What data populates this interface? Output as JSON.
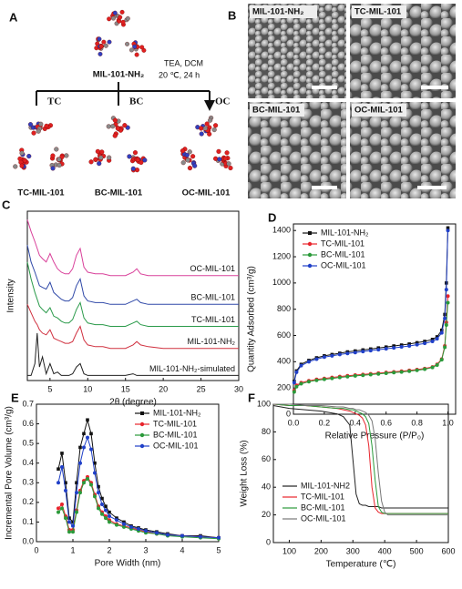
{
  "scheme": {
    "panel": "A",
    "reactant": "MIL-101-NH₂",
    "conditions": [
      "TEA, DCM",
      "20 ℃, 24 h"
    ],
    "reagents": [
      "TC",
      "BC",
      "OC"
    ],
    "products": [
      "TC-MIL-101",
      "BC-MIL-101",
      "OC-MIL-101"
    ]
  },
  "sem": {
    "panel": "B",
    "images": [
      "MIL-101-NH₂",
      "TC-MIL-101",
      "BC-MIL-101",
      "OC-MIL-101"
    ]
  },
  "chart_data": [
    {
      "panel": "C",
      "type": "line",
      "xlabel": "2θ (degree)",
      "ylabel": "Intensity",
      "xlim": [
        2,
        30
      ],
      "xticks": [
        5,
        10,
        15,
        20,
        25,
        30
      ],
      "ylim": [
        0,
        100
      ],
      "x": [
        2,
        2.5,
        3,
        3.3,
        3.6,
        4,
        4.5,
        5,
        5.5,
        6,
        6.5,
        7,
        7.5,
        8,
        8.5,
        9,
        9.5,
        10,
        11,
        12,
        13,
        14,
        15,
        16,
        16.5,
        17,
        18,
        20,
        22,
        25,
        28,
        30
      ],
      "series": [
        {
          "name": "OC-MIL-101",
          "color": "#d9409a",
          "values": [
            95,
            88,
            82,
            78,
            74,
            72,
            70,
            75,
            70,
            66,
            64,
            63,
            63,
            66,
            74,
            78,
            67,
            64,
            63,
            63,
            62,
            62,
            62,
            64,
            66,
            63,
            62,
            62,
            62,
            62,
            62,
            62
          ]
        },
        {
          "name": "BC-MIL-101",
          "color": "#3049a8",
          "values": [
            80,
            70,
            64,
            60,
            56,
            55,
            54,
            58,
            52,
            50,
            48,
            47,
            47,
            49,
            56,
            60,
            50,
            47,
            46,
            46,
            45,
            45,
            45,
            47,
            48,
            46,
            45,
            45,
            45,
            45,
            45,
            45
          ]
        },
        {
          "name": "TC-MIL-101",
          "color": "#2a9a4a",
          "values": [
            70,
            60,
            52,
            48,
            44,
            42,
            40,
            43,
            38,
            37,
            35,
            34,
            34,
            36,
            42,
            46,
            37,
            34,
            33,
            33,
            32,
            32,
            32,
            34,
            35,
            33,
            32,
            32,
            32,
            32,
            32,
            32
          ]
        },
        {
          "name": "MIL-101-NH₂",
          "color": "#d0303f",
          "values": [
            45,
            40,
            35,
            33,
            30,
            28,
            27,
            30,
            25,
            24,
            23,
            22,
            22,
            23,
            28,
            32,
            24,
            21,
            20,
            20,
            19,
            19,
            19,
            21,
            23,
            21,
            20,
            19,
            19,
            19,
            19,
            19
          ]
        },
        {
          "name": "MIL-101-NH₂-simulated",
          "color": "#222222",
          "values": [
            3,
            3,
            10,
            28,
            8,
            14,
            4,
            10,
            4,
            5,
            3,
            3,
            3,
            4,
            8,
            10,
            4,
            3,
            3,
            3,
            3,
            3,
            3,
            4,
            3,
            3,
            3,
            3,
            3,
            3,
            3,
            3
          ]
        }
      ]
    },
    {
      "panel": "D",
      "type": "line",
      "xlabel": "Relative Pressure (P/P₀)",
      "ylabel": "Quantity Adsorbed (cm³/g)",
      "xlim": [
        0,
        1.05
      ],
      "ylim": [
        0,
        1450
      ],
      "xticks": [
        {
          "value": 0,
          "label": "0.0"
        },
        0.2,
        0.4,
        0.6,
        0.8,
        {
          "value": 1,
          "label": "1.0"
        }
      ],
      "yticks": [
        0,
        200,
        400,
        600,
        800,
        1000,
        1200,
        1400
      ],
      "legend": "upper left",
      "x": [
        0.005,
        0.02,
        0.05,
        0.1,
        0.15,
        0.2,
        0.25,
        0.3,
        0.35,
        0.4,
        0.45,
        0.5,
        0.55,
        0.6,
        0.65,
        0.7,
        0.75,
        0.8,
        0.85,
        0.9,
        0.93,
        0.96,
        0.98,
        0.99,
        1.0
      ],
      "series": [
        {
          "name": "MIL-101-NH₂",
          "color": "#111111",
          "marker": "square",
          "values": [
            250,
            330,
            380,
            410,
            430,
            445,
            455,
            465,
            475,
            482,
            490,
            497,
            505,
            512,
            520,
            527,
            535,
            545,
            555,
            570,
            590,
            640,
            760,
            1000,
            1420
          ]
        },
        {
          "name": "TC-MIL-101",
          "color": "#e8242c",
          "marker": "circle",
          "values": [
            180,
            220,
            240,
            255,
            265,
            272,
            280,
            287,
            293,
            298,
            303,
            308,
            313,
            318,
            323,
            328,
            334,
            340,
            348,
            360,
            380,
            420,
            520,
            700,
            900
          ]
        },
        {
          "name": "BC-MIL-101",
          "color": "#2a9a3a",
          "marker": "circle",
          "values": [
            170,
            210,
            232,
            248,
            258,
            266,
            273,
            280,
            286,
            292,
            297,
            302,
            307,
            312,
            317,
            322,
            328,
            335,
            343,
            356,
            375,
            415,
            510,
            680,
            850
          ]
        },
        {
          "name": "OC-MIL-101",
          "color": "#2040c8",
          "marker": "circle",
          "values": [
            240,
            320,
            370,
            400,
            420,
            435,
            445,
            455,
            463,
            470,
            478,
            485,
            492,
            499,
            506,
            513,
            520,
            530,
            540,
            555,
            575,
            620,
            730,
            950,
            1400
          ]
        }
      ]
    },
    {
      "panel": "E",
      "type": "line",
      "xlabel": "Pore Width (nm)",
      "ylabel": "Incremental Pore Volume (cm³/g)",
      "xlim": [
        0,
        5
      ],
      "ylim": [
        0,
        0.7
      ],
      "xticks": [
        0,
        1,
        2,
        3,
        4,
        5
      ],
      "yticks": [
        {
          "value": 0,
          "label": "0.0"
        },
        0.1,
        0.2,
        0.3,
        0.4,
        0.5,
        0.6,
        0.7
      ],
      "legend": "upper right",
      "x": [
        0.6,
        0.7,
        0.8,
        0.9,
        1.0,
        1.1,
        1.2,
        1.3,
        1.4,
        1.5,
        1.6,
        1.7,
        1.8,
        1.9,
        2.0,
        2.2,
        2.4,
        2.6,
        2.8,
        3.0,
        3.3,
        3.6,
        4.0,
        4.5,
        5.0
      ],
      "series": [
        {
          "name": "MIL-101-NH₂",
          "color": "#111111",
          "marker": "square",
          "values": [
            0.37,
            0.45,
            0.3,
            0.12,
            0.1,
            0.3,
            0.48,
            0.55,
            0.62,
            0.55,
            0.4,
            0.28,
            0.22,
            0.18,
            0.15,
            0.12,
            0.1,
            0.08,
            0.07,
            0.06,
            0.05,
            0.04,
            0.03,
            0.03,
            0.02
          ]
        },
        {
          "name": "TC-MIL-101",
          "color": "#e8242c",
          "marker": "circle",
          "values": [
            0.17,
            0.19,
            0.13,
            0.06,
            0.06,
            0.16,
            0.26,
            0.31,
            0.33,
            0.3,
            0.24,
            0.18,
            0.15,
            0.13,
            0.11,
            0.09,
            0.08,
            0.07,
            0.06,
            0.05,
            0.04,
            0.035,
            0.03,
            0.025,
            0.02
          ]
        },
        {
          "name": "BC-MIL-101",
          "color": "#2a9a3a",
          "marker": "circle",
          "values": [
            0.15,
            0.17,
            0.12,
            0.05,
            0.05,
            0.15,
            0.25,
            0.3,
            0.32,
            0.29,
            0.23,
            0.17,
            0.14,
            0.12,
            0.1,
            0.085,
            0.075,
            0.065,
            0.055,
            0.045,
            0.04,
            0.03,
            0.025,
            0.02,
            0.015
          ]
        },
        {
          "name": "OC-MIL-101",
          "color": "#2040c8",
          "marker": "circle",
          "values": [
            0.3,
            0.38,
            0.26,
            0.1,
            0.08,
            0.25,
            0.4,
            0.48,
            0.53,
            0.47,
            0.35,
            0.25,
            0.19,
            0.16,
            0.13,
            0.11,
            0.09,
            0.075,
            0.065,
            0.055,
            0.045,
            0.035,
            0.03,
            0.025,
            0.02
          ]
        }
      ]
    },
    {
      "panel": "F",
      "type": "line",
      "xlabel": "Temperature (℃)",
      "ylabel": "Weight Loss (%)",
      "xlim": [
        50,
        600
      ],
      "ylim": [
        0,
        100
      ],
      "xticks": [
        100,
        200,
        300,
        400,
        500,
        600
      ],
      "yticks": [
        0,
        20,
        40,
        60,
        80,
        100
      ],
      "legend": "lower left",
      "x": [
        50,
        100,
        150,
        200,
        250,
        270,
        290,
        300,
        310,
        320,
        330,
        340,
        350,
        360,
        370,
        380,
        390,
        400,
        410,
        420,
        450,
        500,
        550,
        600
      ],
      "series": [
        {
          "name": "MIL-101-NH2",
          "color": "#222222",
          "values": [
            99,
            97,
            96,
            95,
            93,
            91,
            85,
            60,
            35,
            28,
            27,
            27,
            26,
            26,
            26,
            26,
            25,
            25,
            25,
            25,
            25,
            25,
            25,
            25
          ]
        },
        {
          "name": "TC-MIL-101",
          "color": "#e8242c",
          "values": [
            100,
            99,
            99,
            98,
            97,
            96,
            95,
            94,
            93,
            92,
            90,
            85,
            70,
            40,
            25,
            22,
            21,
            21,
            21,
            21,
            21,
            21,
            21,
            21
          ]
        },
        {
          "name": "BC-MIL-101",
          "color": "#2a9a3a",
          "values": [
            100,
            99,
            99,
            98,
            97,
            97,
            96,
            96,
            95,
            94,
            93,
            91,
            86,
            70,
            45,
            26,
            22,
            21,
            21,
            21,
            21,
            21,
            21,
            21
          ]
        },
        {
          "name": "OC-MIL-101",
          "color": "#777777",
          "values": [
            100,
            100,
            99,
            99,
            98,
            98,
            97,
            97,
            96,
            96,
            95,
            94,
            92,
            88,
            75,
            50,
            30,
            22,
            20,
            20,
            20,
            20,
            20,
            20
          ]
        }
      ]
    }
  ]
}
